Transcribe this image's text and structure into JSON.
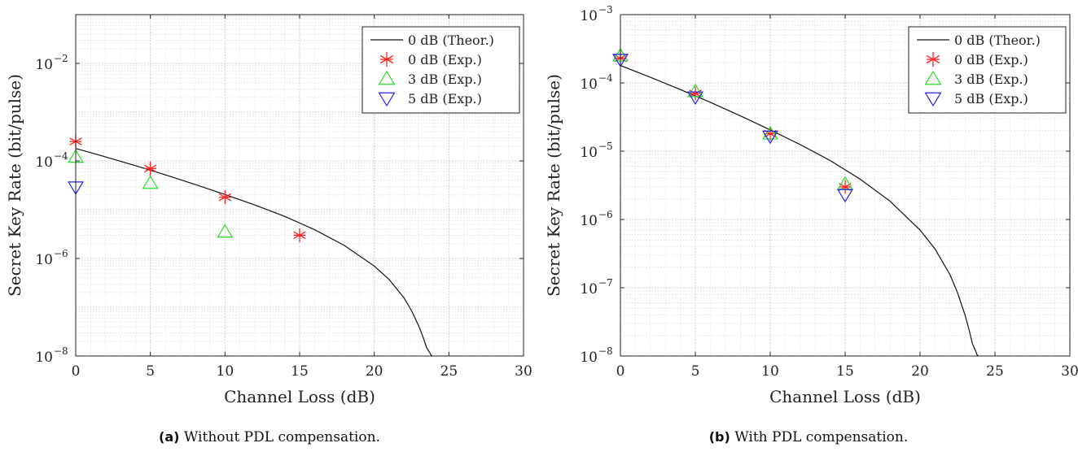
{
  "chart_data": [
    {
      "type": "scatter",
      "panel_label": "(a)",
      "caption": "Without PDL compensation.",
      "xlabel": "Channel Loss (dB)",
      "ylabel": "Secret Key Rate (bit/pulse)",
      "xlim": [
        0,
        30
      ],
      "ylim_log10": [
        -8,
        -1
      ],
      "xticks": [
        "0",
        "5",
        "10",
        "15",
        "20",
        "25",
        "30"
      ],
      "ytick_exponents": [
        "-8",
        "-6",
        "-4",
        "-2"
      ],
      "ytick_base": "10",
      "legend_position": "top-right",
      "theory": {
        "name": "0 dB (Theor.)",
        "x": [
          0,
          2,
          4,
          6,
          8,
          10,
          12,
          14,
          16,
          18,
          20,
          21,
          22,
          22.5,
          23,
          23.3,
          23.5,
          23.7,
          23.8,
          23.85,
          23.9
        ],
        "y": [
          0.00018,
          0.000121,
          8e-05,
          5.2e-05,
          3.3e-05,
          2.05e-05,
          1.25e-05,
          7.3e-06,
          3.9e-06,
          1.85e-06,
          7e-07,
          3.7e-07,
          1.55e-07,
          8.5e-08,
          4e-08,
          2.3e-08,
          1.5e-08,
          1.2e-08,
          1.05e-08,
          1.02e-08,
          1e-08
        ]
      },
      "series": [
        {
          "name": "0 dB (Exp.)",
          "marker": "asterisk",
          "color": "#ff2020",
          "x": [
            0,
            5,
            10,
            15
          ],
          "y": [
            0.00025,
            7e-05,
            1.8e-05,
            3e-06
          ]
        },
        {
          "name": "3 dB (Exp.)",
          "marker": "triangle-up",
          "color": "#22dd22",
          "x": [
            0,
            5,
            10
          ],
          "y": [
            0.00012,
            3.5e-05,
            3.5e-06
          ]
        },
        {
          "name": "5 dB (Exp.)",
          "marker": "triangle-down",
          "color": "#2222ee",
          "x": [
            0
          ],
          "y": [
            2.9e-05
          ]
        }
      ]
    },
    {
      "type": "scatter",
      "panel_label": "(b)",
      "caption": "With PDL compensation.",
      "xlabel": "Channel Loss (dB)",
      "ylabel": "Secret Key Rate (bit/pulse)",
      "xlim": [
        0,
        30
      ],
      "ylim_log10": [
        -8,
        -3
      ],
      "xticks": [
        "0",
        "5",
        "10",
        "15",
        "20",
        "25",
        "30"
      ],
      "ytick_exponents": [
        "-8",
        "-7",
        "-6",
        "-5",
        "-4",
        "-3"
      ],
      "ytick_base": "10",
      "legend_position": "top-right",
      "theory": {
        "name": "0 dB (Theor.)",
        "x": [
          0,
          2,
          4,
          6,
          8,
          10,
          12,
          14,
          16,
          18,
          20,
          21,
          22,
          22.5,
          23,
          23.3,
          23.5,
          23.7,
          23.8,
          23.85,
          23.9
        ],
        "y": [
          0.00018,
          0.000121,
          8e-05,
          5.2e-05,
          3.3e-05,
          2.05e-05,
          1.25e-05,
          7.3e-06,
          3.9e-06,
          1.85e-06,
          7e-07,
          3.7e-07,
          1.55e-07,
          8.5e-08,
          4e-08,
          2.3e-08,
          1.5e-08,
          1.2e-08,
          1.05e-08,
          1.02e-08,
          1e-08
        ]
      },
      "series": [
        {
          "name": "0 dB (Exp.)",
          "marker": "asterisk",
          "color": "#ff2020",
          "x": [
            0,
            5,
            10,
            15
          ],
          "y": [
            0.00023,
            7e-05,
            1.8e-05,
            3e-06
          ]
        },
        {
          "name": "3 dB (Exp.)",
          "marker": "triangle-up",
          "color": "#22dd22",
          "x": [
            0,
            5,
            10,
            15
          ],
          "y": [
            0.00025,
            7.5e-05,
            1.8e-05,
            3.3e-06
          ]
        },
        {
          "name": "5 dB (Exp.)",
          "marker": "triangle-down",
          "color": "#2222ee",
          "x": [
            0,
            5,
            10,
            15
          ],
          "y": [
            0.00022,
            6.2e-05,
            1.65e-05,
            2.3e-06
          ]
        }
      ]
    }
  ]
}
